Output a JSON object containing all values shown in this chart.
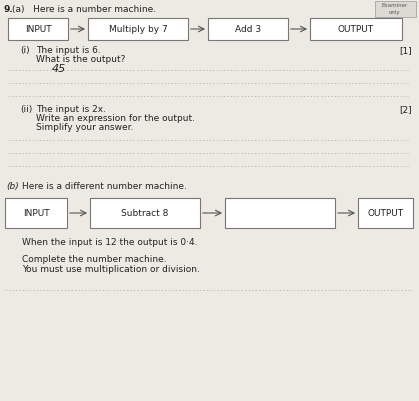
{
  "bg_color": "#edeae4",
  "title_q": "9.",
  "part_a_label": "(a)   Here is a number machine.",
  "part_i_q1": "The input is 6.",
  "part_i_q2": "What is the output?",
  "part_i_mark": "[1]",
  "part_i_answer": "45",
  "part_ii_q1": "The input is 2x.",
  "part_ii_q2": "Write an expression for the output.",
  "part_ii_q3": "Simplify your answer.",
  "part_ii_mark": "[2]",
  "part_b_label": "Here is a different number machine.",
  "bottom_text1": "When the input is 12 the output is 0·4.",
  "bottom_text2a": "Complete the number machine.",
  "bottom_text2b": "You must use multiplication or division.",
  "examiner_label": "Examiner\nonly",
  "box_edge": "#777777",
  "box_face": "#ffffff",
  "dot_color": "#aaaaaa",
  "text_color": "#222222",
  "arrow_color": "#555555"
}
